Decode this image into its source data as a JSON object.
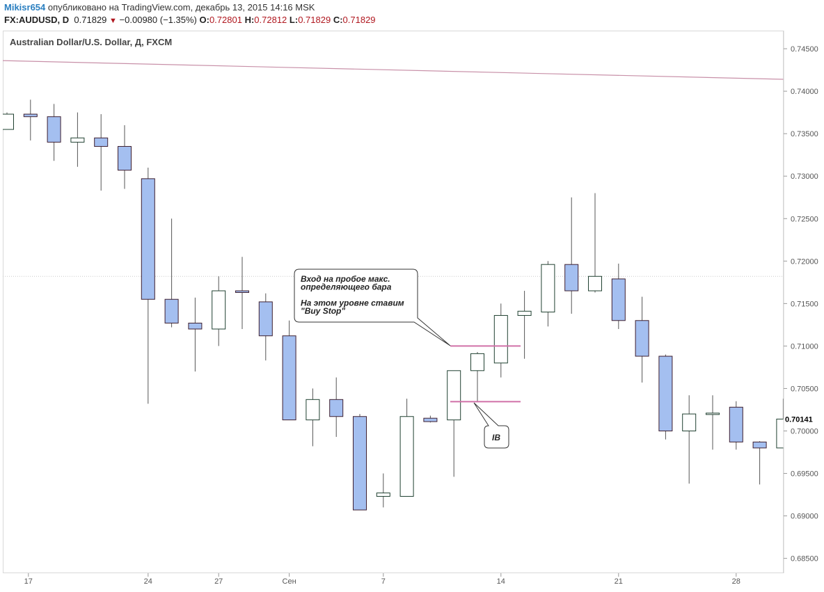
{
  "header": {
    "user": "Mikisr654",
    "published": "опубликовано на TradingView.com, декабрь 13, 2015 14:16 MSK",
    "symbol": "FX:AUDUSD, D",
    "price": "0.71829",
    "change": "−0.00980 (−1.35%)",
    "o_label": "O:",
    "o_value": "0.72801",
    "h_label": "H:",
    "h_value": "0.72812",
    "l_label": "L:",
    "l_value": "0.71829",
    "c_label": "C:",
    "c_value": "0.71829"
  },
  "chart_title": "Australian Dollar/U.S. Dollar, Д, FXCM",
  "chart_data": {
    "type": "candlestick",
    "ylim": [
      0.68,
      0.748
    ],
    "yticks": [
      "0.74500",
      "0.74000",
      "0.73500",
      "0.73000",
      "0.72500",
      "0.72000",
      "0.71500",
      "0.71000",
      "0.70500",
      "0.70000",
      "0.69500",
      "0.69000",
      "0.68500"
    ],
    "xticks": [
      "17",
      "24",
      "27",
      "Сен",
      "7",
      "14",
      "21",
      "28"
    ],
    "last_price_label": "0.70141",
    "candles": [
      {
        "o": 0.7355,
        "h": 0.7375,
        "l": 0.7355,
        "c": 0.7373
      },
      {
        "o": 0.7373,
        "h": 0.739,
        "l": 0.7342,
        "c": 0.737
      },
      {
        "o": 0.737,
        "h": 0.7385,
        "l": 0.7318,
        "c": 0.734
      },
      {
        "o": 0.734,
        "h": 0.7375,
        "l": 0.7311,
        "c": 0.7345
      },
      {
        "o": 0.7345,
        "h": 0.7373,
        "l": 0.7283,
        "c": 0.7335
      },
      {
        "o": 0.7335,
        "h": 0.736,
        "l": 0.7285,
        "c": 0.7307
      },
      {
        "o": 0.7297,
        "h": 0.731,
        "l": 0.7032,
        "c": 0.7155
      },
      {
        "o": 0.7155,
        "h": 0.725,
        "l": 0.7122,
        "c": 0.7127
      },
      {
        "o": 0.7127,
        "h": 0.7157,
        "l": 0.707,
        "c": 0.712
      },
      {
        "o": 0.712,
        "h": 0.7182,
        "l": 0.71,
        "c": 0.7165
      },
      {
        "o": 0.7165,
        "h": 0.7205,
        "l": 0.712,
        "c": 0.7163
      },
      {
        "o": 0.7152,
        "h": 0.7162,
        "l": 0.7083,
        "c": 0.7112
      },
      {
        "o": 0.7112,
        "h": 0.713,
        "l": 0.7013,
        "c": 0.7013
      },
      {
        "o": 0.7013,
        "h": 0.705,
        "l": 0.6982,
        "c": 0.7037
      },
      {
        "o": 0.7037,
        "h": 0.7063,
        "l": 0.6993,
        "c": 0.7017
      },
      {
        "o": 0.7017,
        "h": 0.702,
        "l": 0.6907,
        "c": 0.6907
      },
      {
        "o": 0.6923,
        "h": 0.695,
        "l": 0.691,
        "c": 0.6927
      },
      {
        "o": 0.6923,
        "h": 0.7038,
        "l": 0.6923,
        "c": 0.7017
      },
      {
        "o": 0.7015,
        "h": 0.7018,
        "l": 0.701,
        "c": 0.7011
      },
      {
        "o": 0.7013,
        "h": 0.707,
        "l": 0.6946,
        "c": 0.7071
      },
      {
        "o": 0.7071,
        "h": 0.7093,
        "l": 0.7035,
        "c": 0.7091
      },
      {
        "o": 0.708,
        "h": 0.715,
        "l": 0.7063,
        "c": 0.7136
      },
      {
        "o": 0.7136,
        "h": 0.7165,
        "l": 0.7085,
        "c": 0.7141
      },
      {
        "o": 0.714,
        "h": 0.72,
        "l": 0.7123,
        "c": 0.7196
      },
      {
        "o": 0.7196,
        "h": 0.7275,
        "l": 0.7138,
        "c": 0.7165
      },
      {
        "o": 0.7165,
        "h": 0.728,
        "l": 0.7163,
        "c": 0.7182
      },
      {
        "o": 0.7179,
        "h": 0.7197,
        "l": 0.712,
        "c": 0.713
      },
      {
        "o": 0.713,
        "h": 0.7158,
        "l": 0.7057,
        "c": 0.7088
      },
      {
        "o": 0.7088,
        "h": 0.709,
        "l": 0.699,
        "c": 0.7
      },
      {
        "o": 0.7,
        "h": 0.7042,
        "l": 0.6938,
        "c": 0.702
      },
      {
        "o": 0.702,
        "h": 0.7042,
        "l": 0.6978,
        "c": 0.7021
      },
      {
        "o": 0.7028,
        "h": 0.7035,
        "l": 0.6978,
        "c": 0.6987
      },
      {
        "o": 0.6987,
        "h": 0.6988,
        "l": 0.6937,
        "c": 0.698
      },
      {
        "o": 0.698,
        "h": 0.7038,
        "l": 0.698,
        "c": 0.7014
      }
    ],
    "trendline": {
      "start_price": 0.7436,
      "end_price": 0.7414
    },
    "levels": [
      {
        "name": "buy-stop-level",
        "price": 0.71
      },
      {
        "name": "ib-low-level",
        "price": 0.70345
      }
    ],
    "annotations": {
      "callout_line1": "Вход на пробое макс.",
      "callout_line2": "определяющего бара",
      "callout_line3": "На этом уровне ставим",
      "callout_line4": "\"Buy Stop\"",
      "ib_label": "IB"
    },
    "colors": {
      "bear_fill": "#a4bff0",
      "bull_fill": "#ffffff",
      "bear_border": "#3e1f2f",
      "bull_border": "#1f4030",
      "trendline": "#c890a8",
      "level": "#d070a8"
    }
  }
}
